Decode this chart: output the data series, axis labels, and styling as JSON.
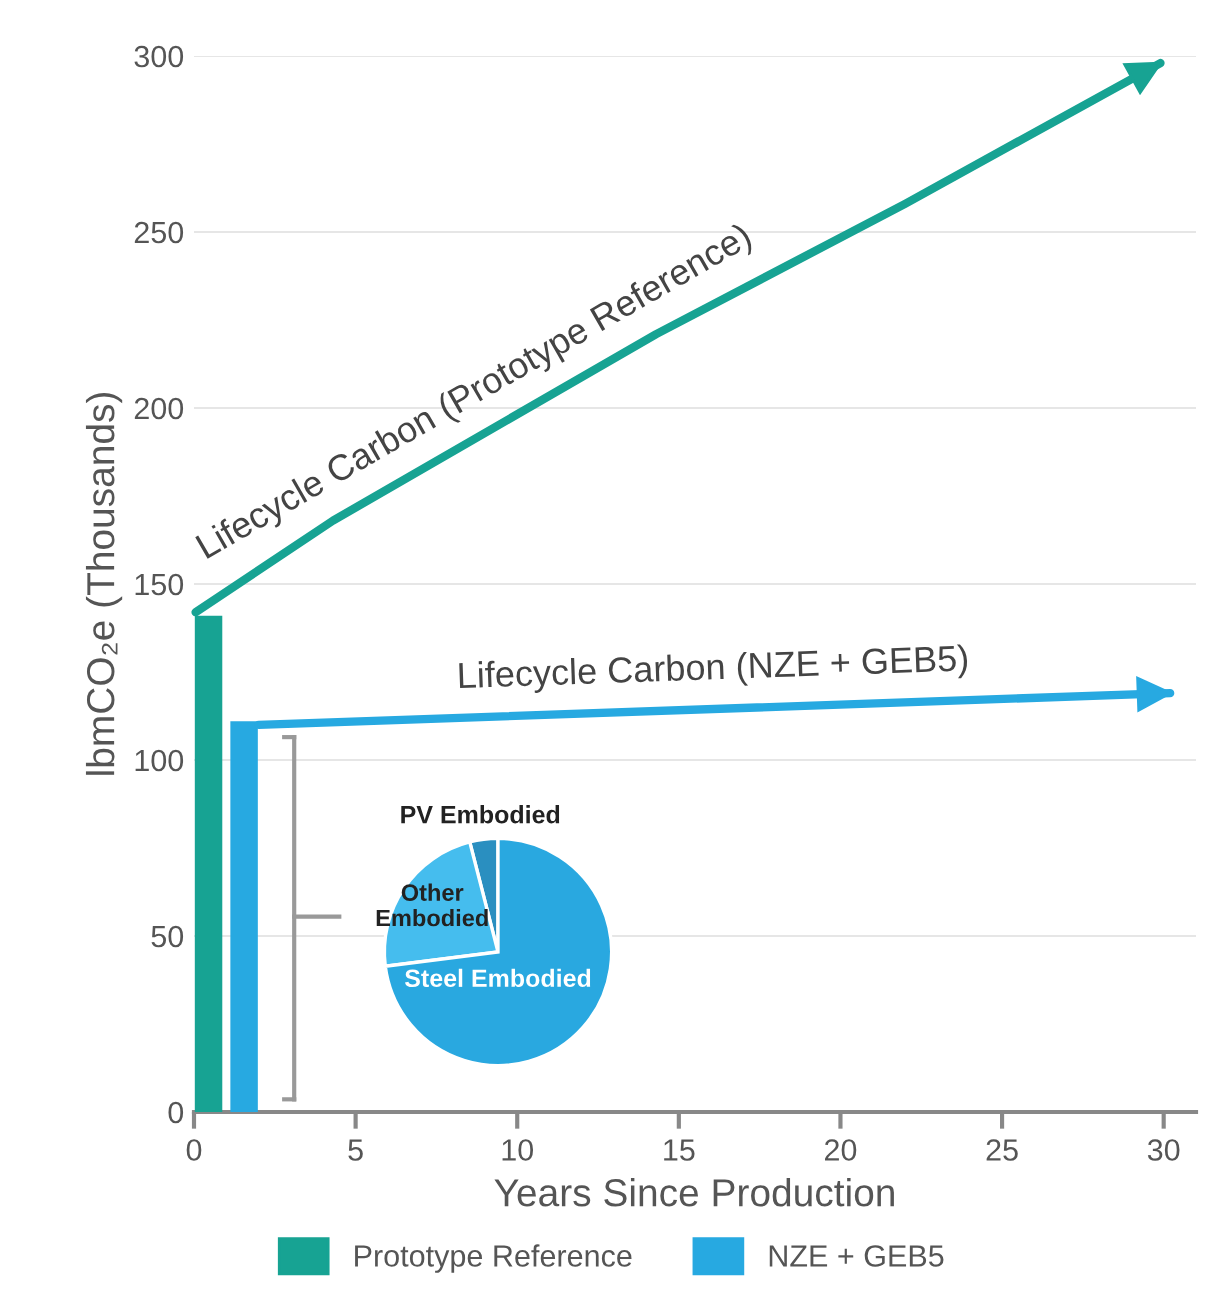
{
  "chart_data": [
    {
      "type": "line",
      "xlabel": "Years Since Production",
      "ylabel": "lbmCO₂e (Thousands)",
      "xlim": [
        0,
        31
      ],
      "ylim": [
        0,
        300
      ],
      "xticks": [
        0,
        5,
        10,
        15,
        20,
        25,
        30
      ],
      "yticks": [
        0,
        50,
        100,
        150,
        200,
        250,
        300
      ],
      "grid": "y",
      "legend": "bottom",
      "marker": "none",
      "line_style": "solid",
      "series": [
        {
          "type": "bar",
          "name": "Prototype Reference",
          "color": "#17a393",
          "x": [
            0.45
          ],
          "values": [
            141
          ]
        },
        {
          "type": "bar",
          "name": "NZE + GEB5",
          "color": "#27a9e1",
          "x": [
            1.55
          ],
          "values": [
            111
          ]
        },
        {
          "type": "line",
          "name": "Lifecycle Carbon (Prototype Reference)",
          "color": "#17a393",
          "x": [
            0.05,
            4.3,
            14.3,
            22,
            29.9
          ],
          "values": [
            142,
            168,
            221,
            258,
            298
          ]
        },
        {
          "type": "line",
          "name": "Lifecycle Carbon (NZE + GEB5)",
          "color": "#27a9e1",
          "x": [
            2.0,
            30.2
          ],
          "values": [
            110,
            119
          ]
        }
      ]
    },
    {
      "type": "pie",
      "categories": [
        "PV Embodied",
        "Other Embodied",
        "Steel Embodied"
      ],
      "values": [
        4,
        23,
        73
      ],
      "colors": [
        "#2a8fc0",
        "#45bdee",
        "#29a8e0"
      ]
    }
  ]
}
